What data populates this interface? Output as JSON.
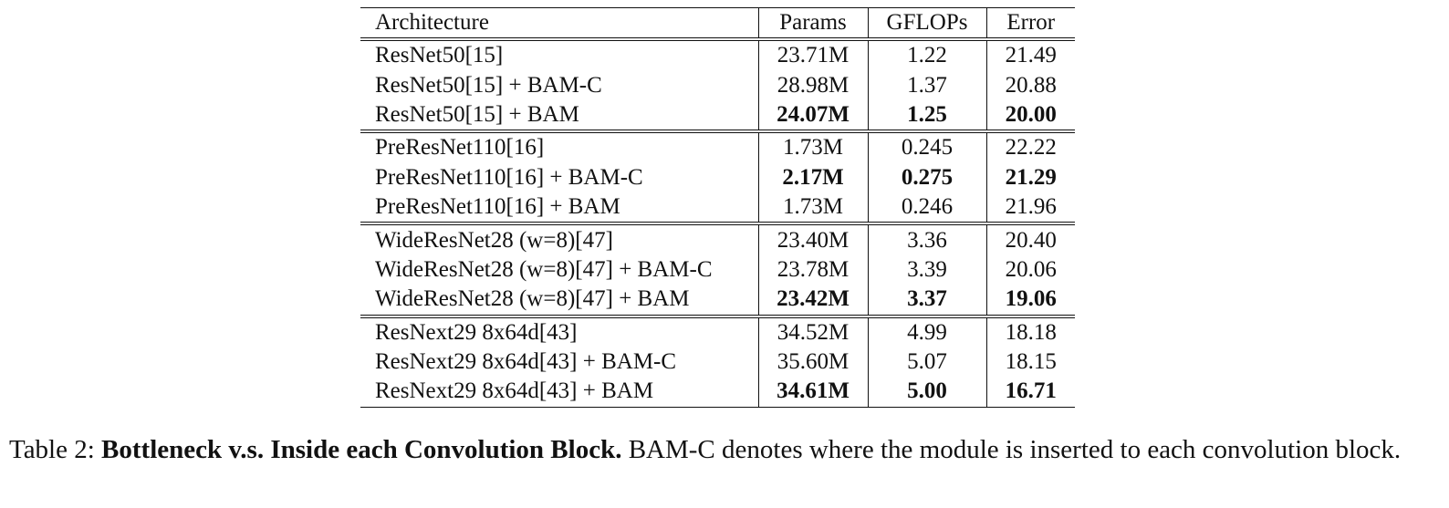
{
  "table": {
    "headers": [
      "Architecture",
      "Params",
      "GFLOPs",
      "Error"
    ],
    "groups": [
      {
        "rows": [
          {
            "architecture": "ResNet50[15]",
            "params": "23.71M",
            "gflops": "1.22",
            "error": "21.49",
            "bold": false
          },
          {
            "architecture": "ResNet50[15] + BAM-C",
            "params": "28.98M",
            "gflops": "1.37",
            "error": "20.88",
            "bold": false
          },
          {
            "architecture": "ResNet50[15] + BAM",
            "params": "24.07M",
            "gflops": "1.25",
            "error": "20.00",
            "bold": true
          }
        ]
      },
      {
        "rows": [
          {
            "architecture": "PreResNet110[16]",
            "params": "1.73M",
            "gflops": "0.245",
            "error": "22.22",
            "bold": false
          },
          {
            "architecture": "PreResNet110[16] + BAM-C",
            "params": "2.17M",
            "gflops": "0.275",
            "error": "21.29",
            "bold": true
          },
          {
            "architecture": "PreResNet110[16] + BAM",
            "params": "1.73M",
            "gflops": "0.246",
            "error": "21.96",
            "bold": false
          }
        ]
      },
      {
        "rows": [
          {
            "architecture": "WideResNet28 (w=8)[47]",
            "params": "23.40M",
            "gflops": "3.36",
            "error": "20.40",
            "bold": false
          },
          {
            "architecture": "WideResNet28 (w=8)[47] + BAM-C",
            "params": "23.78M",
            "gflops": "3.39",
            "error": "20.06",
            "bold": false
          },
          {
            "architecture": "WideResNet28 (w=8)[47] + BAM",
            "params": "23.42M",
            "gflops": "3.37",
            "error": "19.06",
            "bold": true
          }
        ]
      },
      {
        "rows": [
          {
            "architecture": "ResNext29 8x64d[43]",
            "params": "34.52M",
            "gflops": "4.99",
            "error": "18.18",
            "bold": false
          },
          {
            "architecture": "ResNext29 8x64d[43] + BAM-C",
            "params": "35.60M",
            "gflops": "5.07",
            "error": "18.15",
            "bold": false
          },
          {
            "architecture": "ResNext29 8x64d[43] + BAM",
            "params": "34.61M",
            "gflops": "5.00",
            "error": "16.71",
            "bold": true
          }
        ]
      }
    ]
  },
  "caption": {
    "label": "Table 2:",
    "title": "Bottleneck v.s. Inside each Convolution Block.",
    "text": "BAM-C denotes where the module is inserted to each convolution block."
  }
}
